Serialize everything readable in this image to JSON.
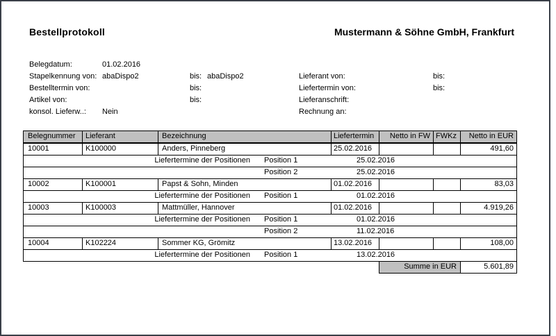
{
  "page": {
    "title": "Bestellprotokoll",
    "company": "Mustermann & Söhne GmbH, Frankfurt"
  },
  "filters": {
    "rows": [
      {
        "label": "Belegdatum:",
        "value": "01.02.2016",
        "bis_label": "",
        "bis_value": "",
        "right_label": "",
        "right_bis_label": "",
        "right_bis_value": ""
      },
      {
        "label": "Stapelkennung von:",
        "value": "abaDispo2",
        "bis_label": "bis:",
        "bis_value": "abaDispo2",
        "right_label": "Lieferant von:",
        "right_bis_label": "bis:",
        "right_bis_value": ""
      },
      {
        "label": "Bestelltermin von:",
        "value": "",
        "bis_label": "bis:",
        "bis_value": "",
        "right_label": "Liefertermin von:",
        "right_bis_label": "bis:",
        "right_bis_value": ""
      },
      {
        "label": "Artikel von:",
        "value": "",
        "bis_label": "bis:",
        "bis_value": "",
        "right_label": "Lieferanschrift:",
        "right_bis_label": "",
        "right_bis_value": ""
      },
      {
        "label": "konsol. Lieferw..:",
        "value": "Nein",
        "bis_label": "",
        "bis_value": "",
        "right_label": "Rechnung an:",
        "right_bis_label": "",
        "right_bis_value": ""
      }
    ]
  },
  "table": {
    "columns": [
      "Belegnummer",
      "Lieferant",
      "Bezeichnung",
      "Liefertermin",
      "Netto in FW",
      "FWKz",
      "Netto in EUR"
    ],
    "positions_label": "Liefertermine der Positionen",
    "orders": [
      {
        "belegnummer": "10001",
        "lieferant": "K100000",
        "bezeichnung": "Anders, Pinneberg",
        "liefertermin": "25.02.2016",
        "netto_fw": "",
        "fwkz": "",
        "netto_eur": "491,60",
        "positions": [
          {
            "name": "Position 1",
            "date": "25.02.2016"
          },
          {
            "name": "Position 2",
            "date": "25.02.2016"
          }
        ]
      },
      {
        "belegnummer": "10002",
        "lieferant": "K100001",
        "bezeichnung": "Papst & Sohn, Minden",
        "liefertermin": "01.02.2016",
        "netto_fw": "",
        "fwkz": "",
        "netto_eur": "83,03",
        "positions": [
          {
            "name": "Position 1",
            "date": "01.02.2016"
          }
        ]
      },
      {
        "belegnummer": "10003",
        "lieferant": "K100003",
        "bezeichnung": "Mattmüller, Hannover",
        "liefertermin": "01.02.2016",
        "netto_fw": "",
        "fwkz": "",
        "netto_eur": "4.919,26",
        "positions": [
          {
            "name": "Position 1",
            "date": "01.02.2016"
          },
          {
            "name": "Position 2",
            "date": "11.02.2016"
          }
        ]
      },
      {
        "belegnummer": "10004",
        "lieferant": "K102224",
        "bezeichnung": "Sommer KG, Grömitz",
        "liefertermin": "13.02.2016",
        "netto_fw": "",
        "fwkz": "",
        "netto_eur": "108,00",
        "positions": [
          {
            "name": "Position 1",
            "date": "13.02.2016"
          }
        ]
      }
    ],
    "summary": {
      "label": "Summe in EUR",
      "value": "5.601,89"
    }
  },
  "colors": {
    "header_bg": "#c0c0c0",
    "table_border": "#000000",
    "frame_border": "#3a3f48",
    "text": "#000000",
    "page_bg": "#ffffff"
  }
}
